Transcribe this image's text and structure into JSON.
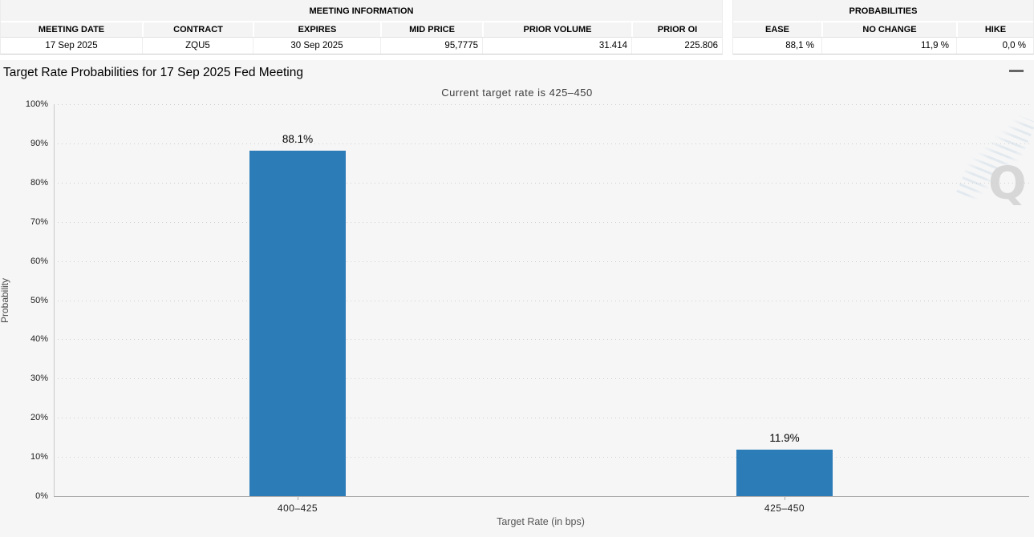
{
  "meeting_info_table": {
    "title": "MEETING INFORMATION",
    "columns": [
      "MEETING DATE",
      "CONTRACT",
      "EXPIRES",
      "MID PRICE",
      "PRIOR VOLUME",
      "PRIOR OI"
    ],
    "row": [
      "17 Sep 2025",
      "ZQU5",
      "30 Sep 2025",
      "95,7775",
      "31.414",
      "225.806"
    ]
  },
  "probabilities_table": {
    "title": "PROBABILITIES",
    "columns": [
      "EASE",
      "NO CHANGE",
      "HIKE"
    ],
    "row": [
      "88,1 %",
      "11,9 %",
      "0,0 %"
    ]
  },
  "chart_data": {
    "type": "bar",
    "title": "Target Rate Probabilities for 17 Sep 2025 Fed Meeting",
    "subtitle": "Current target rate is 425–450",
    "categories": [
      "400–425",
      "425–450"
    ],
    "values": [
      88.1,
      11.9
    ],
    "bar_labels": [
      "88.1%",
      "11.9%"
    ],
    "xlabel": "Target Rate (in bps)",
    "ylabel": "Probability",
    "ylim": [
      0,
      100
    ],
    "ytick_step": 10,
    "yticks": [
      "0%",
      "10%",
      "20%",
      "30%",
      "40%",
      "50%",
      "60%",
      "70%",
      "80%",
      "90%",
      "100%"
    ],
    "grid": "dotted horizontal",
    "legend": "none",
    "bar_color": "#2c7cb8",
    "background_color": "#f6f6f6"
  },
  "icons": {
    "chart_menu": "hamburger-menu-icon"
  },
  "watermark": {
    "letter": "Q"
  }
}
